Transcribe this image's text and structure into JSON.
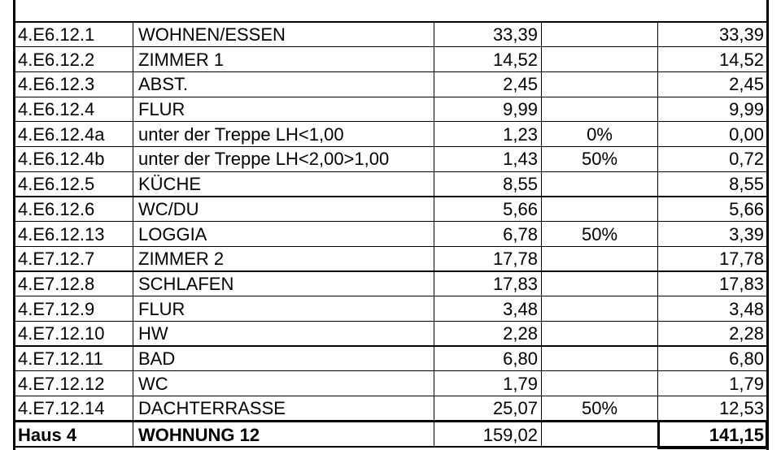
{
  "table": {
    "rows": [
      {
        "id": "4.E6.12.1",
        "name": "WOHNEN/ESSEN",
        "area": "33,39",
        "net": "33,39"
      },
      {
        "id": "4.E6.12.2",
        "name": "ZIMMER 1",
        "area": "14,52",
        "net": "14,52"
      },
      {
        "id": "4.E6.12.3",
        "name": "ABST.",
        "area": "2,45",
        "net": "2,45"
      },
      {
        "id": "4.E6.12.4",
        "name": "FLUR",
        "area": "9,99",
        "net": "9,99"
      },
      {
        "id": "4.E6.12.4a",
        "name": "unter der Treppe LH<1,00",
        "area": "1,23",
        "factor": "0%",
        "net": "0,00"
      },
      {
        "id": "4.E6.12.4b",
        "name": "unter der Treppe LH<2,00>1,00",
        "area": "1,43",
        "factor": "50%",
        "net": "0,72"
      },
      {
        "id": "4.E6.12.5",
        "name": "KÜCHE",
        "area": "8,55",
        "net": "8,55"
      },
      {
        "id": "4.E6.12.6",
        "name": "WC/DU",
        "area": "5,66",
        "net": "5,66"
      },
      {
        "id": "4.E6.12.13",
        "name": "LOGGIA",
        "area": "6,78",
        "factor": "50%",
        "net": "3,39"
      },
      {
        "id": "4.E7.12.7",
        "name": "ZIMMER 2",
        "area": "17,78",
        "net": "17,78"
      },
      {
        "id": "4.E7.12.8",
        "name": "SCHLAFEN",
        "area": "17,83",
        "net": "17,83"
      },
      {
        "id": "4.E7.12.9",
        "name": "FLUR",
        "area": "3,48",
        "net": "3,48"
      },
      {
        "id": "4.E7.12.10",
        "name": "HW",
        "area": "2,28",
        "net": "2,28"
      },
      {
        "id": "4.E7.12.11",
        "name": "BAD",
        "area": "6,80",
        "net": "6,80"
      },
      {
        "id": "4.E7.12.12",
        "name": "WC",
        "area": "1,79",
        "net": "1,79"
      },
      {
        "id": "4.E7.12.14",
        "name": "DACHTERRASSE",
        "area": "25,07",
        "factor": "50%",
        "net": "12,53"
      }
    ],
    "total": {
      "id": "Haus 4",
      "name": "WOHNUNG 12",
      "area": "159,02",
      "net": "141,15"
    }
  }
}
